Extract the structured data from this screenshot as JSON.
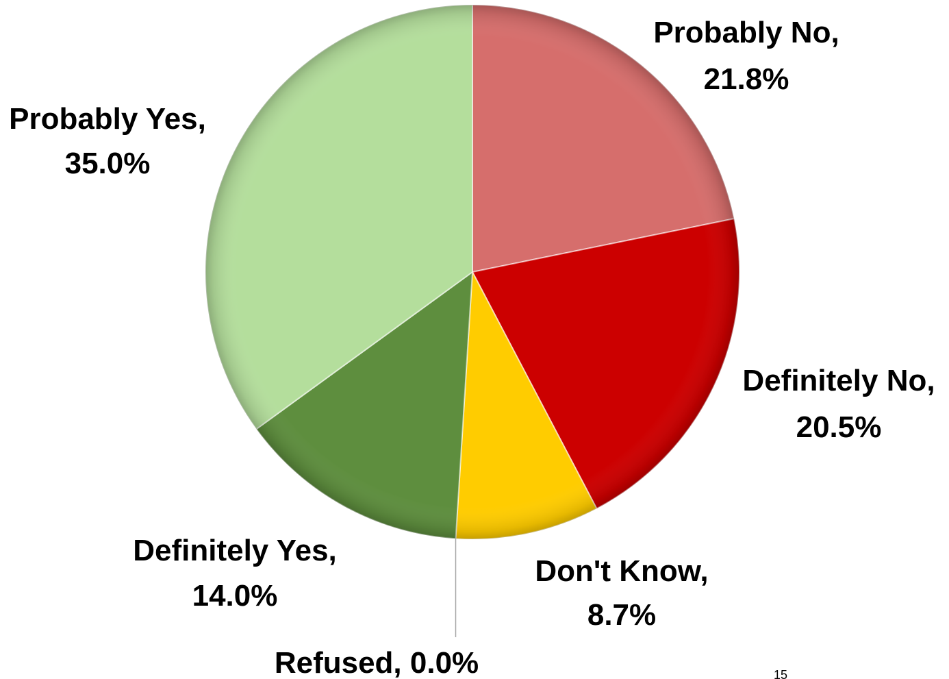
{
  "chart_data": {
    "type": "pie",
    "slices": [
      {
        "label": "Probably No",
        "value": 21.8,
        "value_text": "21.8%",
        "color": "#D66E6C"
      },
      {
        "label": "Definitely No",
        "value": 20.5,
        "value_text": "20.5%",
        "color": "#CC0000"
      },
      {
        "label": "Don't Know",
        "value": 8.7,
        "value_text": "8.7%",
        "color": "#FFCC00"
      },
      {
        "label": "Refused",
        "value": 0.0,
        "value_text": "0.0%",
        "color": "#A6A6A6"
      },
      {
        "label": "Definitely Yes",
        "value": 14.0,
        "value_text": "14.0%",
        "color": "#5E8E3E"
      },
      {
        "label": "Probably Yes",
        "value": 35.0,
        "value_text": "35.0%",
        "color": "#B4DE9C"
      }
    ],
    "start_angle": "12 o'clock",
    "direction": "clockwise",
    "legend": "none",
    "data_labels": "outside, category name and percentage"
  },
  "page_number": "15"
}
